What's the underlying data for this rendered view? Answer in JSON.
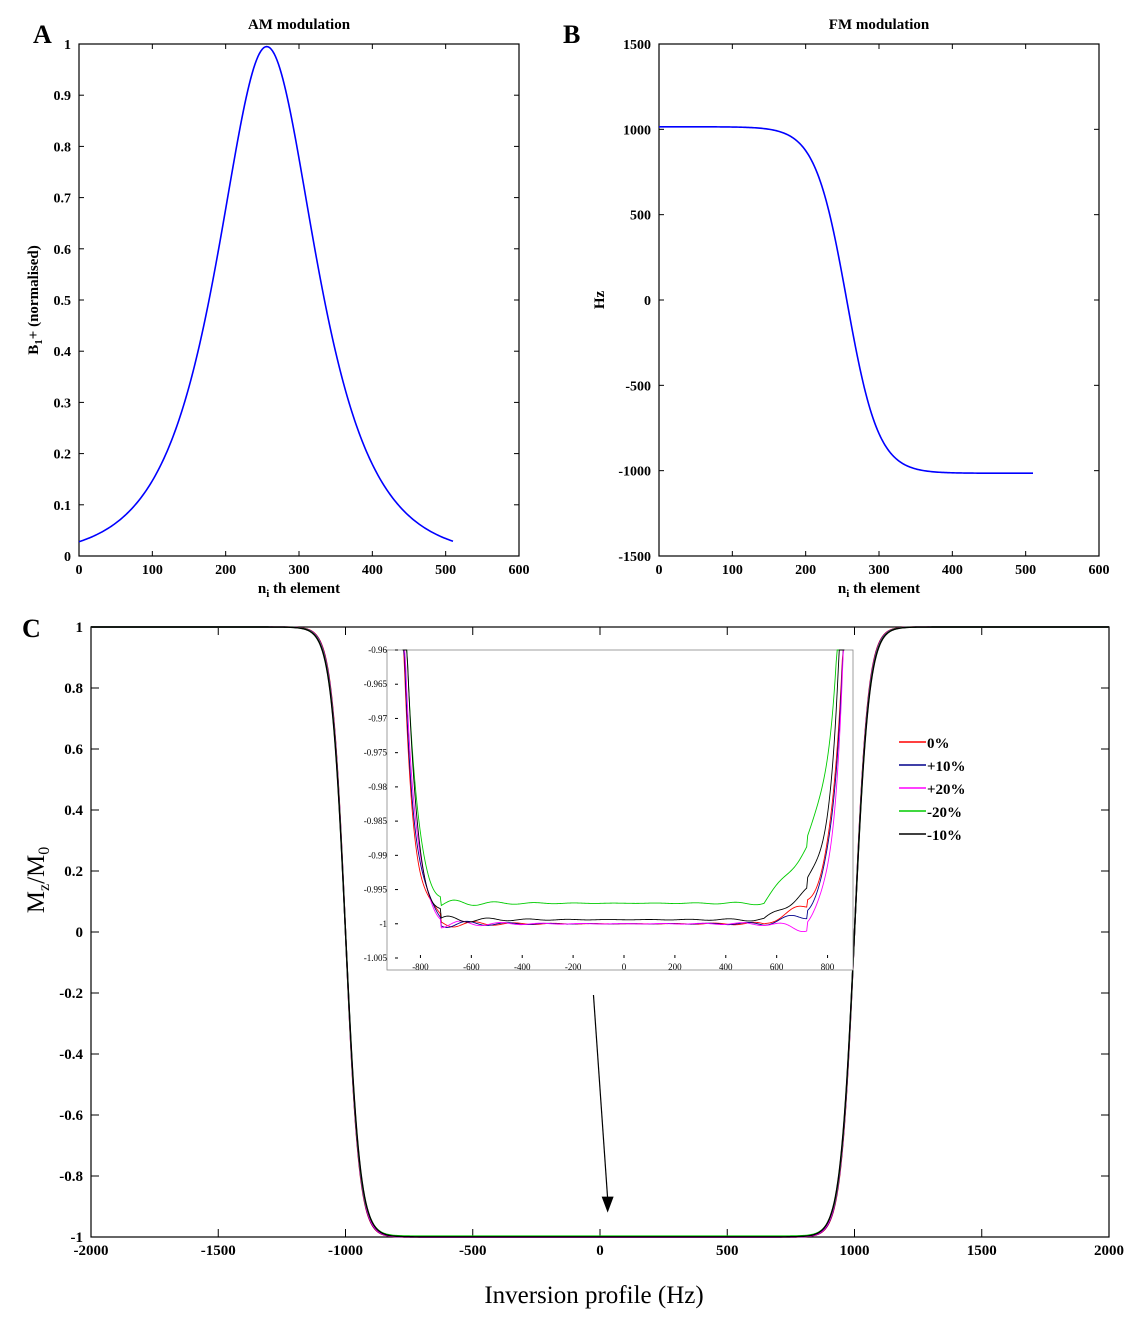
{
  "panels": {
    "a": "A",
    "b": "B",
    "c": "C"
  },
  "chart_data": [
    {
      "id": "A",
      "type": "line",
      "title": "AM modulation",
      "xlabel_main": "n",
      "xlabel_sub": "i",
      "xlabel_rest": " th element",
      "ylabel": "B1+ (normalised)",
      "ylabel_main": "B",
      "ylabel_sub": "1",
      "ylabel_rest": "+ (normalised)",
      "xlim": [
        0,
        600
      ],
      "ylim": [
        0,
        1
      ],
      "xticks": [
        0,
        100,
        200,
        300,
        400,
        500,
        600
      ],
      "yticks": [
        0,
        0.1,
        0.2,
        0.3,
        0.4,
        0.5,
        0.6,
        0.7,
        0.8,
        0.9,
        1
      ],
      "ytick_labels": [
        "0",
        "0.1",
        "0.2",
        "0.3",
        "0.4",
        "0.5",
        "0.6",
        "0.7",
        "0.8",
        "0.9",
        "1"
      ],
      "series": [
        {
          "name": "AM",
          "color": "#0000ff",
          "function": "sech",
          "x_start": 0,
          "x_end": 510,
          "center": 256,
          "width": 60,
          "amplitude": 0.995
        }
      ]
    },
    {
      "id": "B",
      "type": "line",
      "title": "FM modulation",
      "xlabel_main": "n",
      "xlabel_sub": "i",
      "xlabel_rest": " th element",
      "ylabel": "Hz",
      "xlim": [
        0,
        600
      ],
      "ylim": [
        -1500,
        1500
      ],
      "xticks": [
        0,
        100,
        200,
        300,
        400,
        500,
        600
      ],
      "yticks": [
        -1500,
        -1000,
        -500,
        0,
        500,
        1000,
        1500
      ],
      "series": [
        {
          "name": "FM",
          "color": "#0000ff",
          "function": "tanh",
          "x_start": 0,
          "x_end": 510,
          "center": 256,
          "width": 43,
          "amplitude": 1015
        }
      ]
    },
    {
      "id": "C",
      "type": "line",
      "title": "",
      "xlabel": "Inversion profile (Hz)",
      "ylabel": "Mz/M0",
      "ylabel_main": "M",
      "ylabel_sub": "z",
      "ylabel_mid": "/M",
      "ylabel_sub2": "0",
      "xlim": [
        -2000,
        2000
      ],
      "ylim": [
        -1,
        1
      ],
      "xticks": [
        -2000,
        -1500,
        -1000,
        -500,
        0,
        500,
        1000,
        1500,
        2000
      ],
      "yticks": [
        -1,
        -0.8,
        -0.6,
        -0.4,
        -0.2,
        0,
        0.2,
        0.4,
        0.6,
        0.8,
        1
      ],
      "ytick_labels": [
        "-1",
        "-0.8",
        "-0.6",
        "-0.4",
        "-0.2",
        "0",
        "0.2",
        "0.4",
        "0.6",
        "0.8",
        "1"
      ],
      "transition_center_hz": 1000,
      "transition_width_hz": 55,
      "legend_location": "right",
      "series": [
        {
          "name": "0%",
          "color": "#ff0000",
          "offset": 0.0,
          "edge_dev": 0.004
        },
        {
          "name": "+10%",
          "color": "#00008b",
          "offset": 0.0,
          "edge_dev": 0.002
        },
        {
          "name": "+20%",
          "color": "#ff00ff",
          "offset": 0.0,
          "edge_dev": -0.001
        },
        {
          "name": "-20%",
          "color": "#00cc00",
          "offset": 0.003,
          "edge_dev": 0.012
        },
        {
          "name": "-10%",
          "color": "#000000",
          "offset": 0.0006,
          "edge_dev": 0.006
        }
      ],
      "inset": {
        "xlim": [
          -900,
          900
        ],
        "ylim": [
          -1.005,
          -0.96
        ],
        "xticks": [
          -800,
          -600,
          -400,
          -200,
          0,
          200,
          400,
          600,
          800
        ],
        "yticks": [
          -1.005,
          -1,
          -0.995,
          -0.99,
          -0.985,
          -0.98,
          -0.975,
          -0.97,
          -0.965,
          -0.96
        ],
        "ytick_labels": [
          "-1.005",
          "-1",
          "-0.995",
          "-0.99",
          "-0.985",
          "-0.98",
          "-0.975",
          "-0.97",
          "-0.965",
          "-0.96"
        ],
        "arrow_target_hz": 30
      }
    }
  ]
}
